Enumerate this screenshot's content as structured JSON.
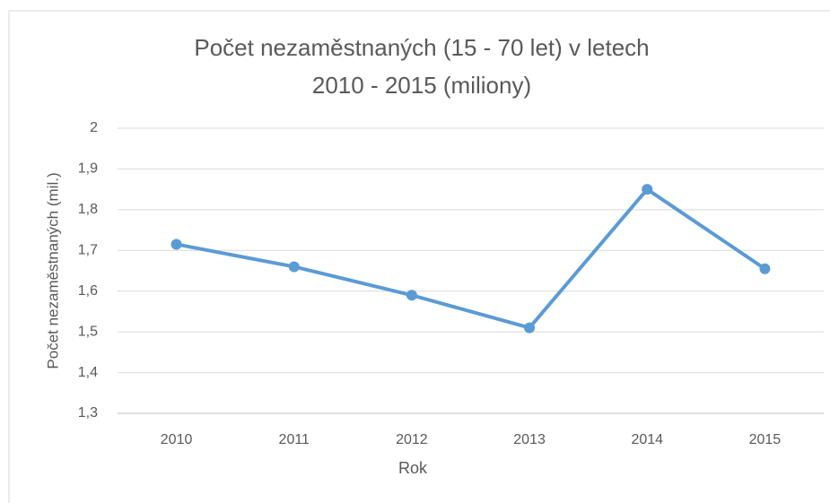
{
  "chart_data": {
    "type": "line",
    "title": [
      "Počet nezaměstnaných (15 - 70 let) v letech",
      "2010 - 2015 (miliony)"
    ],
    "x_label": "Rok",
    "y_label": "Počet nezaměstnaných (mil.)",
    "categories": [
      "2010",
      "2011",
      "2012",
      "2013",
      "2014",
      "2015"
    ],
    "series": [
      {
        "name": "Počet nezaměstnaných",
        "color": "#5b9bd5",
        "values": [
          1.715,
          1.66,
          1.59,
          1.51,
          1.85,
          1.655
        ]
      }
    ],
    "ylim": [
      1.3,
      2
    ],
    "yticks": [
      {
        "value": 1.3,
        "label": "1,3"
      },
      {
        "value": 1.4,
        "label": "1,4"
      },
      {
        "value": 1.5,
        "label": "1,5"
      },
      {
        "value": 1.6,
        "label": "1,6"
      },
      {
        "value": 1.7,
        "label": "1,7"
      },
      {
        "value": 1.8,
        "label": "1,8"
      },
      {
        "value": 1.9,
        "label": "1,9"
      },
      2
    ],
    "grid": true
  }
}
